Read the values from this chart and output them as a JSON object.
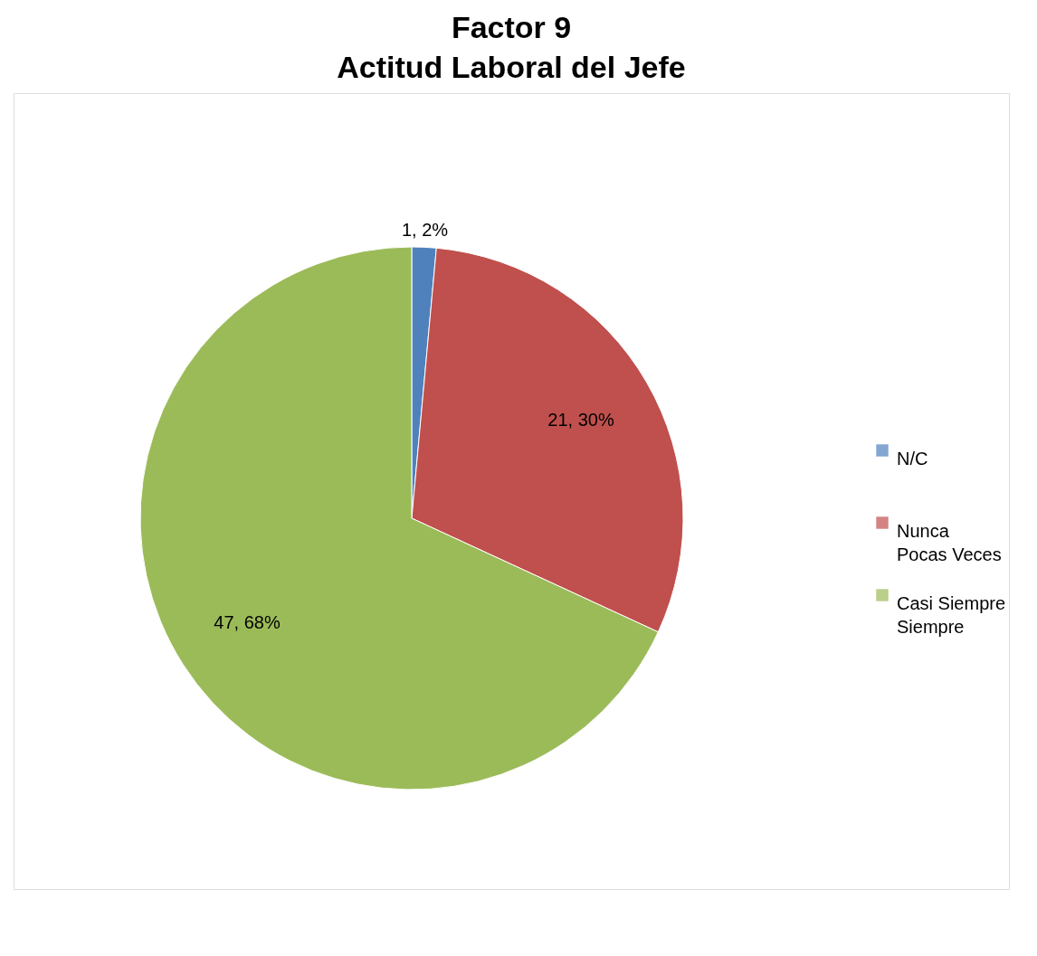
{
  "chart_data": {
    "type": "pie",
    "title": "Factor 9\nActitud  Laboral del Jefe",
    "categories": [
      "N/C",
      "Nunca\nPocas Veces",
      "Casi Siempre\nSiempre"
    ],
    "values": [
      1,
      21,
      47
    ],
    "colors": [
      "#4f81bd",
      "#c0504d",
      "#9bbb59"
    ],
    "value_labels": [
      "1, 2%",
      "21, 30%",
      "47, 68%"
    ],
    "legend": "right"
  }
}
